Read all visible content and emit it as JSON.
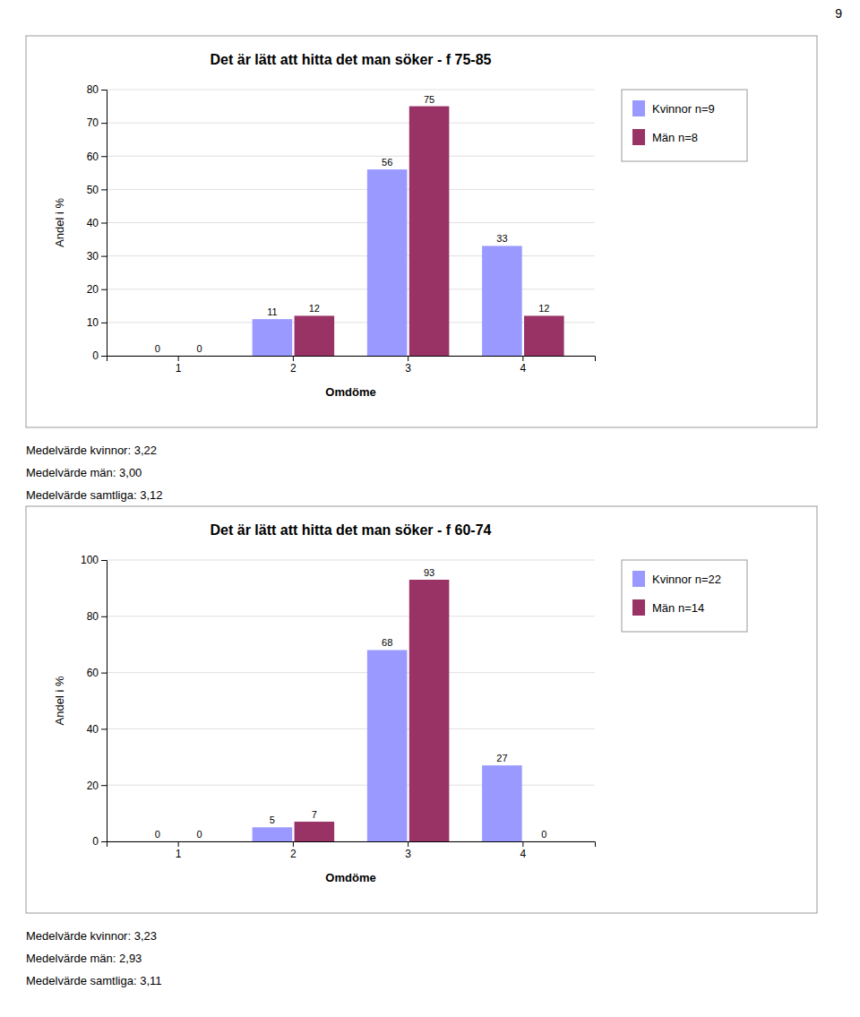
{
  "annotations": [
    "9"
  ],
  "chart_data": [
    {
      "type": "bar",
      "title": "Det är lätt att hitta det man söker - f 75-85",
      "categories": [
        1,
        2,
        3,
        4
      ],
      "series": [
        {
          "name": "Kvinnor n=9",
          "color": "#9999FF",
          "values": [
            0,
            11,
            56,
            33
          ]
        },
        {
          "name": "Män n=8",
          "color": "#993366",
          "values": [
            0,
            12,
            75,
            12
          ]
        }
      ],
      "xlabel": "Omdöme",
      "ylabel": "Andel i %",
      "ylim": [
        0,
        80
      ],
      "yticks": [
        0,
        10,
        20,
        30,
        40,
        50,
        60,
        70,
        80
      ],
      "grid": true,
      "data_labels": true,
      "legend": "right",
      "annotations": [
        "Medelvärde kvinnor: 3,22",
        "Medelvärde män: 3,00",
        "Medelvärde samtliga: 3,12"
      ]
    },
    {
      "type": "bar",
      "title": "Det är lätt att hitta det man söker - f 60-74",
      "categories": [
        1,
        2,
        3,
        4
      ],
      "series": [
        {
          "name": "Kvinnor n=22",
          "color": "#9999FF",
          "values": [
            0,
            5,
            68,
            27
          ]
        },
        {
          "name": "Män n=14",
          "color": "#993366",
          "values": [
            0,
            7,
            93,
            0
          ]
        }
      ],
      "xlabel": "Omdöme",
      "ylabel": "Andel i %",
      "ylim": [
        0,
        100
      ],
      "yticks": [
        0,
        20,
        40,
        60,
        80,
        100
      ],
      "grid": true,
      "data_labels": true,
      "legend": "right",
      "annotations": [
        "Medelvärde kvinnor: 3,23",
        "Medelvärde män: 2,93",
        "Medelvärde samtliga: 3,11"
      ]
    }
  ]
}
